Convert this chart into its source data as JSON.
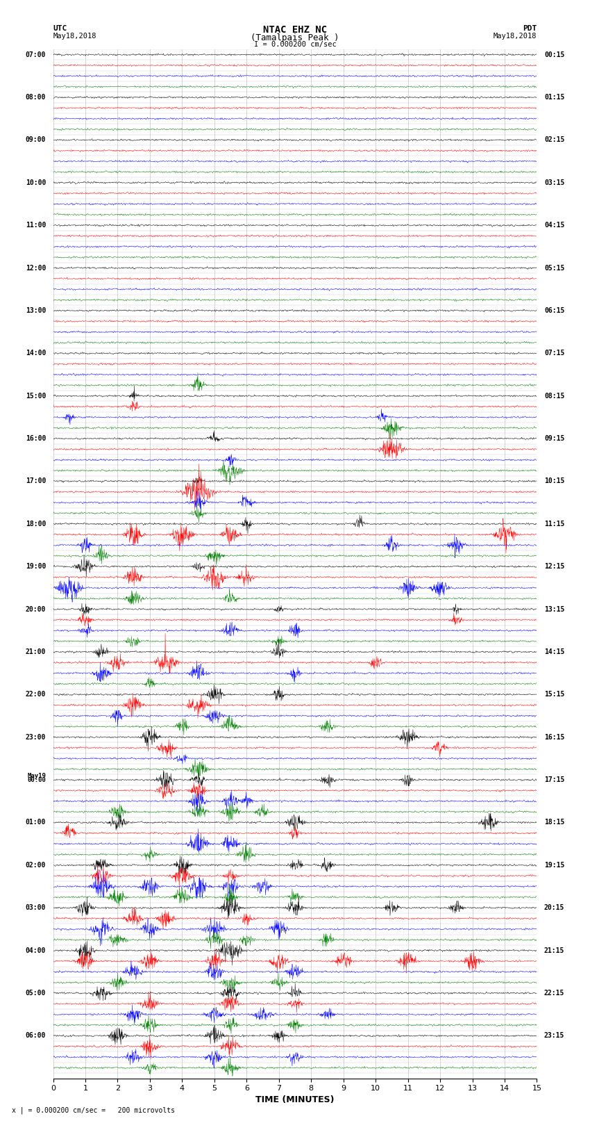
{
  "title_line1": "NTAC EHZ NC",
  "title_line2": "(Tamalpais Peak )",
  "scale_text": "I = 0.000200 cm/sec",
  "left_label_top": "UTC",
  "left_label_date": "May18,2018",
  "right_label_top": "PDT",
  "right_label_date": "May18,2018",
  "footer_text": "x | = 0.000200 cm/sec =   200 microvolts",
  "xlabel": "TIME (MINUTES)",
  "xmin": 0,
  "xmax": 15,
  "utc_labels": [
    "07:00",
    "",
    "",
    "",
    "08:00",
    "",
    "",
    "",
    "09:00",
    "",
    "",
    "",
    "10:00",
    "",
    "",
    "",
    "11:00",
    "",
    "",
    "",
    "12:00",
    "",
    "",
    "",
    "13:00",
    "",
    "",
    "",
    "14:00",
    "",
    "",
    "",
    "15:00",
    "",
    "",
    "",
    "16:00",
    "",
    "",
    "",
    "17:00",
    "",
    "",
    "",
    "18:00",
    "",
    "",
    "",
    "19:00",
    "",
    "",
    "",
    "20:00",
    "",
    "",
    "",
    "21:00",
    "",
    "",
    "",
    "22:00",
    "",
    "",
    "",
    "23:00",
    "",
    "",
    "",
    "May19\n00:00",
    "",
    "",
    "",
    "01:00",
    "",
    "",
    "",
    "02:00",
    "",
    "",
    "",
    "03:00",
    "",
    "",
    "",
    "04:00",
    "",
    "",
    "",
    "05:00",
    "",
    "",
    "",
    "06:00",
    "",
    "",
    ""
  ],
  "pdt_labels": [
    "00:15",
    "",
    "",
    "",
    "01:15",
    "",
    "",
    "",
    "02:15",
    "",
    "",
    "",
    "03:15",
    "",
    "",
    "",
    "04:15",
    "",
    "",
    "",
    "05:15",
    "",
    "",
    "",
    "06:15",
    "",
    "",
    "",
    "07:15",
    "",
    "",
    "",
    "08:15",
    "",
    "",
    "",
    "09:15",
    "",
    "",
    "",
    "10:15",
    "",
    "",
    "",
    "11:15",
    "",
    "",
    "",
    "12:15",
    "",
    "",
    "",
    "13:15",
    "",
    "",
    "",
    "14:15",
    "",
    "",
    "",
    "15:15",
    "",
    "",
    "",
    "16:15",
    "",
    "",
    "",
    "17:15",
    "",
    "",
    "",
    "18:15",
    "",
    "",
    "",
    "19:15",
    "",
    "",
    "",
    "20:15",
    "",
    "",
    "",
    "21:15",
    "",
    "",
    "",
    "22:15",
    "",
    "",
    "",
    "23:15",
    "",
    "",
    ""
  ],
  "trace_colors": [
    "black",
    "red",
    "blue",
    "green"
  ],
  "n_traces": 96,
  "noise_amplitude": 0.06,
  "bg_color": "white",
  "grid_color": "#999999",
  "trace_linewidth": 0.35,
  "figsize": [
    8.5,
    16.13
  ],
  "dpi": 100
}
